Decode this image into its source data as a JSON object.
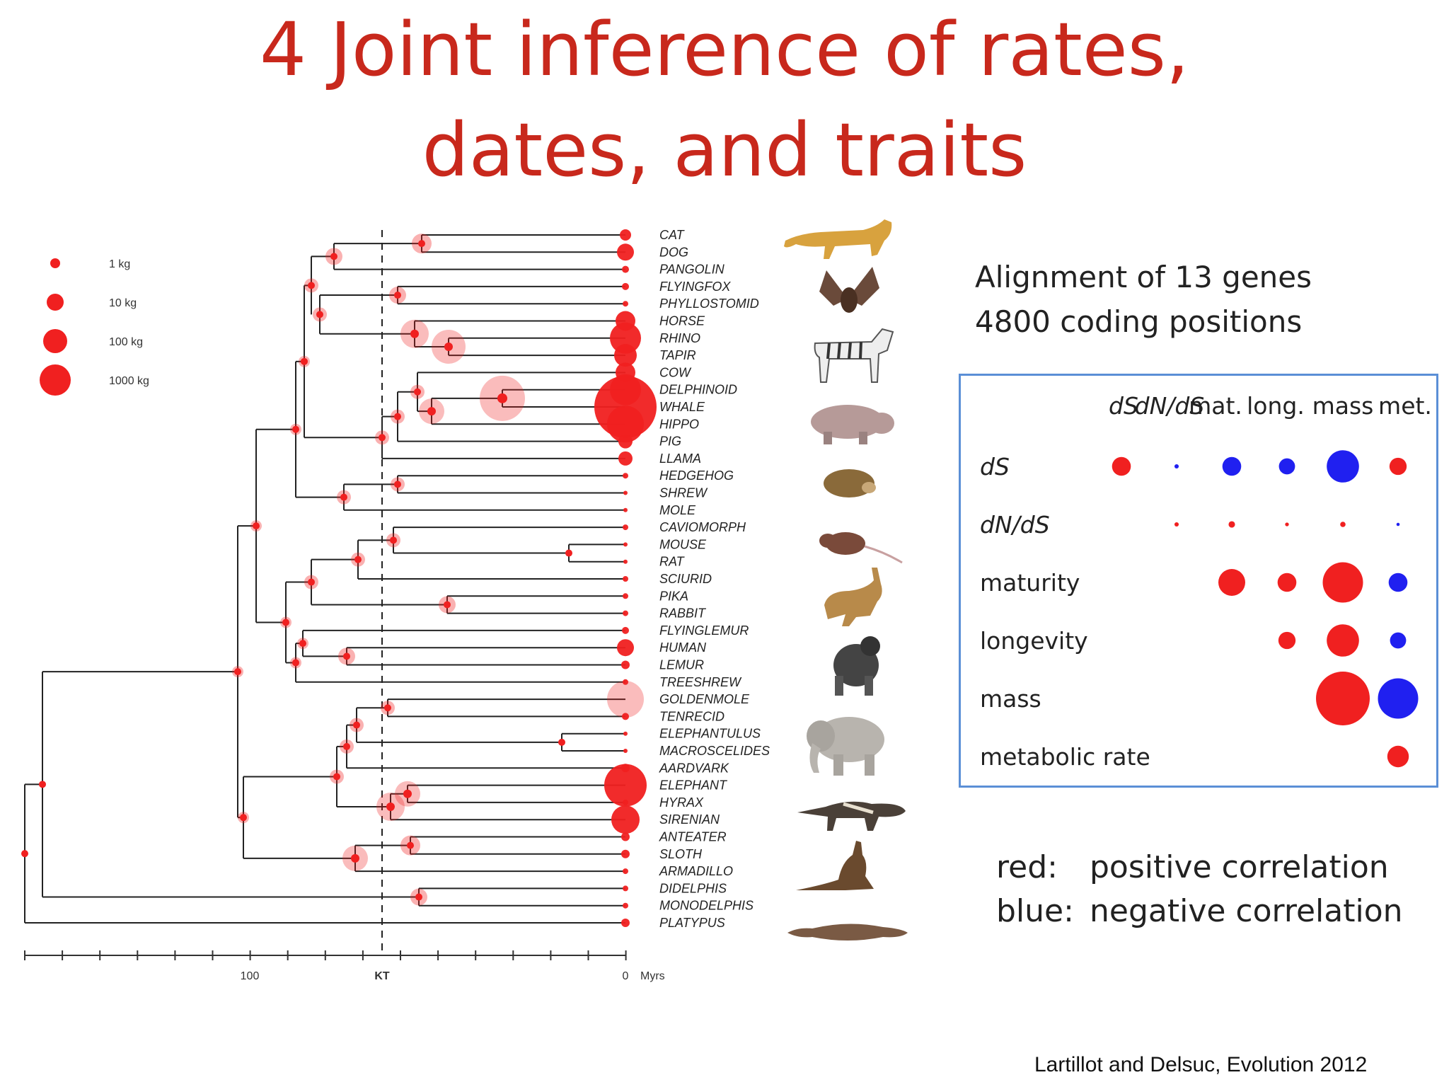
{
  "title": {
    "line1": "4 Joint inference of rates,",
    "line2": "dates, and traits"
  },
  "mass_legend": [
    {
      "label": "1 kg",
      "kg": 1
    },
    {
      "label": "10 kg",
      "kg": 10
    },
    {
      "label": "100 kg",
      "kg": 100
    },
    {
      "label": "1000 kg",
      "kg": 1000
    }
  ],
  "taxa": [
    "CAT",
    "DOG",
    "PANGOLIN",
    "FLYINGFOX",
    "PHYLLOSTOMID",
    "HORSE",
    "RHINO",
    "TAPIR",
    "COW",
    "DELPHINOID",
    "WHALE",
    "HIPPO",
    "PIG",
    "LLAMA",
    "HEDGEHOG",
    "SHREW",
    "MOLE",
    "CAVIOMORPH",
    "MOUSE",
    "RAT",
    "SCIURID",
    "PIKA",
    "RABBIT",
    "FLYINGLEMUR",
    "HUMAN",
    "LEMUR",
    "TREESHREW",
    "GOLDENMOLE",
    "TENRECID",
    "ELEPHANTULUS",
    "MACROSCELIDES",
    "AARDVARK",
    "ELEPHANT",
    "HYRAX",
    "SIRENIAN",
    "ANTEATER",
    "SLOTH",
    "ARMADILLO",
    "DIDELPHIS",
    "MONODELPHIS",
    "PLATYPUS"
  ],
  "time_axis": {
    "labels": {
      "hundred": "100",
      "kt": "KT",
      "zero": "0",
      "unit": "Myrs"
    }
  },
  "alignment": {
    "line1": "Alignment of 13 genes",
    "line2": "4800 coding positions"
  },
  "correlation_matrix": {
    "columns": [
      "dS",
      "dN/dS",
      "mat.",
      "long.",
      "mass",
      "met."
    ],
    "rows": [
      "dS",
      "dN/dS",
      "maturity",
      "longevity",
      "mass",
      "metabolic rate"
    ],
    "cells": [
      {
        "row": 0,
        "col": 0,
        "sign": "positive",
        "strength": 0.35
      },
      {
        "row": 0,
        "col": 1,
        "sign": "negative",
        "strength": 0.08
      },
      {
        "row": 0,
        "col": 2,
        "sign": "negative",
        "strength": 0.35
      },
      {
        "row": 0,
        "col": 3,
        "sign": "negative",
        "strength": 0.3
      },
      {
        "row": 0,
        "col": 4,
        "sign": "negative",
        "strength": 0.6
      },
      {
        "row": 0,
        "col": 5,
        "sign": "positive",
        "strength": 0.32
      },
      {
        "row": 1,
        "col": 1,
        "sign": "positive",
        "strength": 0.08
      },
      {
        "row": 1,
        "col": 2,
        "sign": "positive",
        "strength": 0.12
      },
      {
        "row": 1,
        "col": 3,
        "sign": "positive",
        "strength": 0.07
      },
      {
        "row": 1,
        "col": 4,
        "sign": "positive",
        "strength": 0.1
      },
      {
        "row": 1,
        "col": 5,
        "sign": "negative",
        "strength": 0.06
      },
      {
        "row": 2,
        "col": 2,
        "sign": "positive",
        "strength": 0.5
      },
      {
        "row": 2,
        "col": 3,
        "sign": "positive",
        "strength": 0.35
      },
      {
        "row": 2,
        "col": 4,
        "sign": "positive",
        "strength": 0.75
      },
      {
        "row": 2,
        "col": 5,
        "sign": "negative",
        "strength": 0.35
      },
      {
        "row": 3,
        "col": 3,
        "sign": "positive",
        "strength": 0.32
      },
      {
        "row": 3,
        "col": 4,
        "sign": "positive",
        "strength": 0.6
      },
      {
        "row": 3,
        "col": 5,
        "sign": "negative",
        "strength": 0.3
      },
      {
        "row": 4,
        "col": 4,
        "sign": "positive",
        "strength": 1.0
      },
      {
        "row": 4,
        "col": 5,
        "sign": "negative",
        "strength": 0.75
      },
      {
        "row": 5,
        "col": 5,
        "sign": "positive",
        "strength": 0.4
      }
    ]
  },
  "color_key": {
    "red_label": "red:",
    "red_text": "positive correlation",
    "blue_label": "blue:",
    "blue_text": "negative correlation"
  },
  "citation": "Lartillot and Delsuc, Evolution 2012",
  "colors": {
    "title": "#c8281c",
    "positive": "#f02020",
    "negative": "#2020f0",
    "box": "#5b8fd6"
  },
  "animal_icons": [
    "cat-icon",
    "bat-icon",
    "zebra-icon",
    "hippo-icon",
    "hedgehog-icon",
    "rat-icon",
    "hare-icon",
    "gorilla-icon",
    "elephant-icon",
    "anteater-icon",
    "kangaroo-icon",
    "platypus-icon"
  ]
}
